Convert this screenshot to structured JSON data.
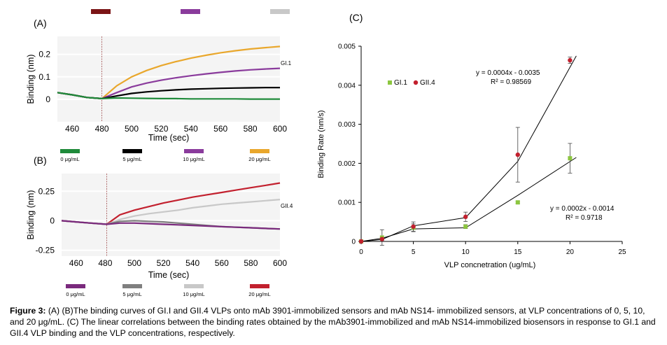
{
  "colors": {
    "dark_red": "#7b1416",
    "purple": "#8a3b9c",
    "light_gray": "#c8c8c8",
    "green": "#1f8a3a",
    "black": "#000000",
    "orange": "#e9a72c",
    "gray": "#7f7f7f",
    "red": "#c2202e",
    "lime": "#8cc63f"
  },
  "caption": {
    "label": "Figure 3:",
    "text": " (A) (B)The binding curves of GI.I and GII.4 VLPs onto mAb 3901-immobilized sensors and mAb NS14- immobilized sensors, at VLP concentrations of 0, 5, 10, and 20 μg/mL. (C) The linear correlations between the binding rates obtained by the mAb3901-immobilized and mAb NS14-immobilized biosensors in response to GI.1 and GII.4 VLP binding and the VLP concentrations, respectively."
  },
  "chart_data": [
    {
      "panel": "(A)",
      "type": "line",
      "xlabel": "Time (sec)",
      "ylabel": "Binding (nm)",
      "xlim": [
        450,
        600
      ],
      "ylim": [
        -0.1,
        0.28
      ],
      "xticks": [
        460,
        480,
        500,
        520,
        540,
        560,
        580,
        600
      ],
      "yticks": [
        {
          "v": 0.2,
          "label": "0.2"
        },
        {
          "v": 0.1,
          "label": "0.1"
        },
        {
          "v": 0,
          "label": "0"
        }
      ],
      "marker_time": 480,
      "curve_label": "GI.1",
      "legend": [
        {
          "label": "0 μg/mL",
          "color": "#1f8a3a"
        },
        {
          "label": "5 μg/mL",
          "color": "#000000"
        },
        {
          "label": "10 μg/mL",
          "color": "#8a3b9c"
        },
        {
          "label": "20 μg/mL",
          "color": "#e9a72c"
        }
      ],
      "series": [
        {
          "name": "20 μg/mL",
          "color": "#e9a72c",
          "x": [
            450,
            460,
            470,
            480,
            490,
            500,
            510,
            520,
            530,
            540,
            550,
            560,
            570,
            580,
            590,
            600
          ],
          "y": [
            0.03,
            0.02,
            0.008,
            0.003,
            0.06,
            0.1,
            0.128,
            0.15,
            0.168,
            0.183,
            0.196,
            0.207,
            0.216,
            0.224,
            0.23,
            0.235
          ]
        },
        {
          "name": "10 μg/mL",
          "color": "#8a3b9c",
          "x": [
            450,
            460,
            470,
            480,
            490,
            500,
            510,
            520,
            530,
            540,
            550,
            560,
            570,
            580,
            590,
            600
          ],
          "y": [
            0.03,
            0.02,
            0.008,
            0.003,
            0.03,
            0.055,
            0.072,
            0.085,
            0.096,
            0.105,
            0.113,
            0.12,
            0.126,
            0.131,
            0.135,
            0.138
          ]
        },
        {
          "name": "5 μg/mL",
          "color": "#000000",
          "x": [
            450,
            460,
            470,
            480,
            490,
            500,
            510,
            520,
            530,
            540,
            550,
            560,
            570,
            580,
            590,
            600
          ],
          "y": [
            0.03,
            0.02,
            0.008,
            0.003,
            0.015,
            0.026,
            0.033,
            0.038,
            0.042,
            0.045,
            0.047,
            0.049,
            0.05,
            0.051,
            0.052,
            0.052
          ]
        },
        {
          "name": "0 μg/mL",
          "color": "#1f8a3a",
          "x": [
            450,
            460,
            470,
            480,
            490,
            500,
            510,
            520,
            530,
            540,
            550,
            560,
            570,
            580,
            590,
            600
          ],
          "y": [
            0.03,
            0.02,
            0.008,
            0.003,
            0.006,
            0.005,
            0.004,
            0.003,
            0.003,
            0.002,
            0.002,
            0.002,
            0.002,
            0.001,
            0.001,
            0.001
          ]
        }
      ],
      "top_swatches": [
        "#7b1416",
        "#8a3b9c",
        "#c8c8c8"
      ]
    },
    {
      "panel": "(B)",
      "type": "line",
      "xlabel": "Time (sec)",
      "ylabel": "Binding (nm)",
      "xlim": [
        450,
        600
      ],
      "ylim": [
        -0.3,
        0.4
      ],
      "xticks": [
        460,
        480,
        500,
        520,
        540,
        560,
        580,
        600
      ],
      "yticks": [
        {
          "v": 0.25,
          "label": "0.25"
        },
        {
          "v": 0,
          "label": "0"
        },
        {
          "v": -0.25,
          "label": "-0.25"
        }
      ],
      "marker_time": 481,
      "curve_label": "GII.4",
      "legend": [
        {
          "label": "0 μg/mL",
          "color": "#7a2a7d"
        },
        {
          "label": "5 μg/mL",
          "color": "#7f7f7f"
        },
        {
          "label": "10 μg/mL",
          "color": "#c8c8c8"
        },
        {
          "label": "20 μg/mL",
          "color": "#c2202e"
        }
      ],
      "series": [
        {
          "name": "20 μg/mL",
          "color": "#c2202e",
          "x": [
            450,
            460,
            470,
            481,
            490,
            500,
            510,
            520,
            530,
            540,
            550,
            560,
            570,
            580,
            590,
            600
          ],
          "y": [
            0.0,
            -0.01,
            -0.02,
            -0.03,
            0.05,
            0.09,
            0.12,
            0.15,
            0.175,
            0.2,
            0.22,
            0.24,
            0.26,
            0.28,
            0.3,
            0.32
          ]
        },
        {
          "name": "10 μg/mL",
          "color": "#c8c8c8",
          "x": [
            450,
            460,
            470,
            481,
            490,
            500,
            510,
            520,
            530,
            540,
            550,
            560,
            570,
            580,
            590,
            600
          ],
          "y": [
            0.0,
            -0.01,
            -0.02,
            -0.03,
            0.01,
            0.04,
            0.06,
            0.075,
            0.09,
            0.11,
            0.125,
            0.14,
            0.15,
            0.16,
            0.17,
            0.18
          ]
        },
        {
          "name": "5 μg/mL",
          "color": "#7f7f7f",
          "x": [
            450,
            460,
            470,
            481,
            490,
            500,
            510,
            520,
            530,
            540,
            550,
            560,
            570,
            580,
            590,
            600
          ],
          "y": [
            0.0,
            -0.01,
            -0.02,
            -0.03,
            -0.005,
            0.0,
            -0.005,
            -0.01,
            -0.02,
            -0.03,
            -0.04,
            -0.05,
            -0.055,
            -0.06,
            -0.065,
            -0.07
          ]
        },
        {
          "name": "0 μg/mL",
          "color": "#7a2a7d",
          "x": [
            450,
            460,
            470,
            481,
            490,
            500,
            510,
            520,
            530,
            540,
            550,
            560,
            570,
            580,
            590,
            600
          ],
          "y": [
            0.0,
            -0.01,
            -0.02,
            -0.03,
            -0.02,
            -0.02,
            -0.025,
            -0.03,
            -0.035,
            -0.04,
            -0.045,
            -0.05,
            -0.055,
            -0.06,
            -0.065,
            -0.07
          ]
        }
      ]
    },
    {
      "panel": "(C)",
      "type": "scatter",
      "xlabel": "VLP concnetration (ug/mL)",
      "ylabel": "Binding Rate (nm/s)",
      "xlim": [
        0,
        25
      ],
      "ylim": [
        0,
        0.005
      ],
      "xticks": [
        0,
        5,
        10,
        15,
        20,
        25
      ],
      "yticks": [
        {
          "v": 0,
          "label": "0"
        },
        {
          "v": 0.001,
          "label": "0.001"
        },
        {
          "v": 0.002,
          "label": "0.002"
        },
        {
          "v": 0.003,
          "label": "0.003"
        },
        {
          "v": 0.004,
          "label": "0.004"
        },
        {
          "v": 0.005,
          "label": "0.005"
        }
      ],
      "legend": [
        {
          "label": "GI.1",
          "color": "#8cc63f",
          "marker": "square"
        },
        {
          "label": "GII.4",
          "color": "#c2202e",
          "marker": "circle"
        }
      ],
      "series": [
        {
          "name": "GI.1",
          "color": "#8cc63f",
          "marker": "square",
          "x": [
            0,
            2,
            5,
            10,
            15,
            20
          ],
          "y": [
            0,
            0.0001,
            0.00035,
            0.00038,
            0.001,
            0.00213
          ],
          "err": [
            0,
            0.0002,
            0.0001,
            5e-05,
            3e-05,
            0.00038
          ],
          "fit_x": [
            0,
            2,
            5,
            10,
            15,
            20.6
          ],
          "fit_y": [
            0,
            8e-05,
            0.00032,
            0.00035,
            0.00118,
            0.00215
          ],
          "equation": "y = 0.0002x - 0.0014",
          "r2": "R² = 0.9718"
        },
        {
          "name": "GII.4",
          "color": "#c2202e",
          "marker": "circle",
          "x": [
            0,
            2,
            5,
            10,
            15,
            20
          ],
          "y": [
            0,
            6e-05,
            0.00038,
            0.00063,
            0.00222,
            0.00464
          ],
          "err": [
            0,
            3e-05,
            0.00012,
            0.00012,
            0.0007,
            8e-05
          ],
          "fit_x": [
            0,
            2,
            5,
            10,
            15,
            20.6
          ],
          "fit_y": [
            0,
            5e-05,
            0.0004,
            0.00061,
            0.00205,
            0.00475
          ],
          "equation": "y = 0.0004x - 0.0035",
          "r2": "R² = 0.98569"
        }
      ]
    }
  ]
}
